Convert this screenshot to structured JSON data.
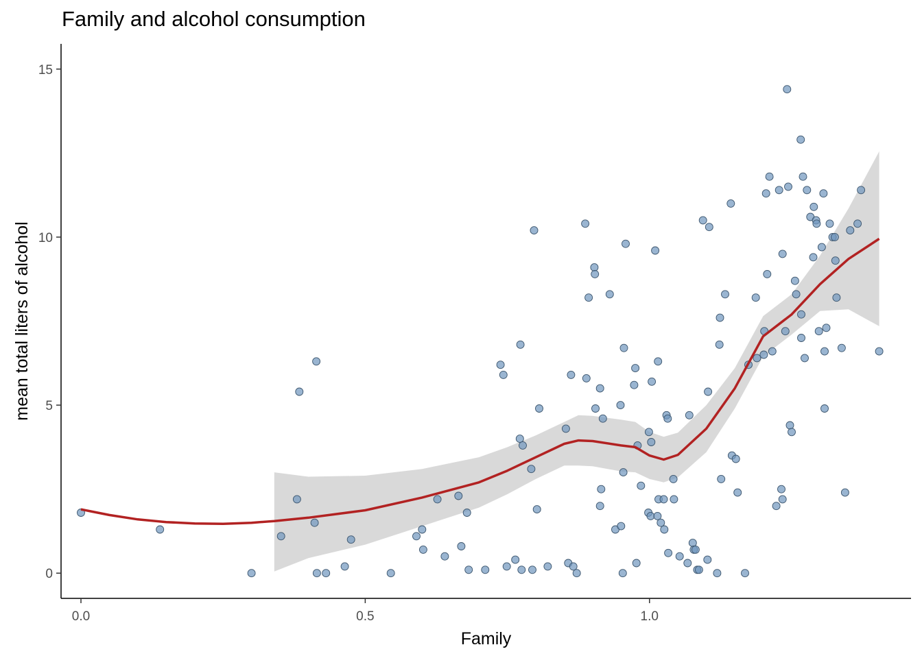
{
  "chart_data": {
    "type": "scatter",
    "title": "Family and alcohol consumption",
    "xlabel": "Family",
    "ylabel": "mean total liters of alcohol",
    "xlim": [
      -0.035,
      1.46
    ],
    "ylim": [
      -0.75,
      15.75
    ],
    "x_ticks": [
      0.0,
      0.5,
      1.0
    ],
    "x_tick_labels": [
      "0.0",
      "0.5",
      "1.0"
    ],
    "y_ticks": [
      0,
      5,
      10,
      15
    ],
    "y_tick_labels": [
      "0",
      "5",
      "10",
      "15"
    ],
    "grid": false,
    "point_color": "#6f96bd",
    "point_edge_color": "#3d566e",
    "smooth_color": "#b22222",
    "ribbon_color": "#d9d9d9",
    "points": [
      [
        0.0,
        1.8
      ],
      [
        0.139,
        1.3
      ],
      [
        0.3,
        0.0
      ],
      [
        0.352,
        1.1
      ],
      [
        0.38,
        2.2
      ],
      [
        0.384,
        5.4
      ],
      [
        0.411,
        1.5
      ],
      [
        0.414,
        6.3
      ],
      [
        0.415,
        0.0
      ],
      [
        0.431,
        0.0
      ],
      [
        0.464,
        0.2
      ],
      [
        0.475,
        1.0
      ],
      [
        0.545,
        0.0
      ],
      [
        0.59,
        1.1
      ],
      [
        0.6,
        1.3
      ],
      [
        0.602,
        0.7
      ],
      [
        0.627,
        2.2
      ],
      [
        0.64,
        0.5
      ],
      [
        0.664,
        2.3
      ],
      [
        0.669,
        0.8
      ],
      [
        0.679,
        1.8
      ],
      [
        0.682,
        0.1
      ],
      [
        0.711,
        0.1
      ],
      [
        0.738,
        6.2
      ],
      [
        0.743,
        5.9
      ],
      [
        0.749,
        0.2
      ],
      [
        0.764,
        0.4
      ],
      [
        0.772,
        4.0
      ],
      [
        0.773,
        6.8
      ],
      [
        0.775,
        0.1
      ],
      [
        0.777,
        3.8
      ],
      [
        0.792,
        3.1
      ],
      [
        0.794,
        0.1
      ],
      [
        0.797,
        10.2
      ],
      [
        0.802,
        1.9
      ],
      [
        0.806,
        4.9
      ],
      [
        0.821,
        0.2
      ],
      [
        0.853,
        4.3
      ],
      [
        0.857,
        0.3
      ],
      [
        0.862,
        5.9
      ],
      [
        0.866,
        0.2
      ],
      [
        0.872,
        0.0
      ],
      [
        0.887,
        10.4
      ],
      [
        0.889,
        5.8
      ],
      [
        0.893,
        8.2
      ],
      [
        0.903,
        9.1
      ],
      [
        0.904,
        8.9
      ],
      [
        0.905,
        4.9
      ],
      [
        0.913,
        2.0
      ],
      [
        0.913,
        5.5
      ],
      [
        0.915,
        2.5
      ],
      [
        0.918,
        4.6
      ],
      [
        0.93,
        8.3
      ],
      [
        0.94,
        1.3
      ],
      [
        0.949,
        5.0
      ],
      [
        0.95,
        1.4
      ],
      [
        0.953,
        0.0
      ],
      [
        0.954,
        3.0
      ],
      [
        0.955,
        6.7
      ],
      [
        0.958,
        9.8
      ],
      [
        0.973,
        5.6
      ],
      [
        0.975,
        6.1
      ],
      [
        0.977,
        0.3
      ],
      [
        0.979,
        3.8
      ],
      [
        0.985,
        2.6
      ],
      [
        0.998,
        1.8
      ],
      [
        0.999,
        4.2
      ],
      [
        1.002,
        1.7
      ],
      [
        1.003,
        3.9
      ],
      [
        1.004,
        5.7
      ],
      [
        1.01,
        9.6
      ],
      [
        1.014,
        1.7
      ],
      [
        1.015,
        6.3
      ],
      [
        1.016,
        2.2
      ],
      [
        1.02,
        1.5
      ],
      [
        1.025,
        2.2
      ],
      [
        1.026,
        1.3
      ],
      [
        1.03,
        4.7
      ],
      [
        1.032,
        4.6
      ],
      [
        1.033,
        0.6
      ],
      [
        1.042,
        2.8
      ],
      [
        1.043,
        2.2
      ],
      [
        1.053,
        0.5
      ],
      [
        1.067,
        0.3
      ],
      [
        1.07,
        4.7
      ],
      [
        1.076,
        0.9
      ],
      [
        1.078,
        0.7
      ],
      [
        1.081,
        0.7
      ],
      [
        1.084,
        0.1
      ],
      [
        1.087,
        0.1
      ],
      [
        1.094,
        10.5
      ],
      [
        1.102,
        0.4
      ],
      [
        1.103,
        5.4
      ],
      [
        1.105,
        10.3
      ],
      [
        1.119,
        0.0
      ],
      [
        1.123,
        6.8
      ],
      [
        1.124,
        7.6
      ],
      [
        1.126,
        2.8
      ],
      [
        1.133,
        8.3
      ],
      [
        1.143,
        11.0
      ],
      [
        1.145,
        3.5
      ],
      [
        1.152,
        3.4
      ],
      [
        1.155,
        2.4
      ],
      [
        1.168,
        0.0
      ],
      [
        1.174,
        6.2
      ],
      [
        1.187,
        8.2
      ],
      [
        1.189,
        6.4
      ],
      [
        1.201,
        6.5
      ],
      [
        1.202,
        7.2
      ],
      [
        1.205,
        11.3
      ],
      [
        1.207,
        8.9
      ],
      [
        1.211,
        11.8
      ],
      [
        1.216,
        6.6
      ],
      [
        1.223,
        2.0
      ],
      [
        1.228,
        11.4
      ],
      [
        1.232,
        2.5
      ],
      [
        1.234,
        9.5
      ],
      [
        1.234,
        2.2
      ],
      [
        1.239,
        7.2
      ],
      [
        1.242,
        14.4
      ],
      [
        1.244,
        11.5
      ],
      [
        1.247,
        4.4
      ],
      [
        1.25,
        4.2
      ],
      [
        1.256,
        8.7
      ],
      [
        1.258,
        8.3
      ],
      [
        1.266,
        12.9
      ],
      [
        1.267,
        7.7
      ],
      [
        1.267,
        7.0
      ],
      [
        1.27,
        11.8
      ],
      [
        1.273,
        6.4
      ],
      [
        1.277,
        11.4
      ],
      [
        1.283,
        10.6
      ],
      [
        1.288,
        9.4
      ],
      [
        1.289,
        10.9
      ],
      [
        1.293,
        10.5
      ],
      [
        1.294,
        10.4
      ],
      [
        1.298,
        7.2
      ],
      [
        1.303,
        9.7
      ],
      [
        1.306,
        11.3
      ],
      [
        1.308,
        6.6
      ],
      [
        1.308,
        4.9
      ],
      [
        1.311,
        7.3
      ],
      [
        1.317,
        10.4
      ],
      [
        1.322,
        10.0
      ],
      [
        1.326,
        10.0
      ],
      [
        1.327,
        9.3
      ],
      [
        1.329,
        8.2
      ],
      [
        1.338,
        6.7
      ],
      [
        1.344,
        2.4
      ],
      [
        1.353,
        10.2
      ],
      [
        1.366,
        10.4
      ],
      [
        1.372,
        11.4
      ],
      [
        1.404,
        6.6
      ]
    ],
    "smooth": {
      "x": [
        0.0,
        0.05,
        0.1,
        0.15,
        0.2,
        0.25,
        0.3,
        0.34,
        0.4,
        0.5,
        0.6,
        0.7,
        0.75,
        0.8,
        0.85,
        0.875,
        0.9,
        0.95,
        0.975,
        1.0,
        1.025,
        1.05,
        1.1,
        1.15,
        1.2,
        1.25,
        1.3,
        1.35,
        1.404
      ],
      "y": [
        1.9,
        1.73,
        1.6,
        1.52,
        1.48,
        1.47,
        1.5,
        1.55,
        1.65,
        1.87,
        2.25,
        2.7,
        3.05,
        3.45,
        3.85,
        3.95,
        3.93,
        3.8,
        3.75,
        3.5,
        3.38,
        3.52,
        4.3,
        5.5,
        7.05,
        7.7,
        8.6,
        9.35,
        9.95
      ],
      "lower": [
        null,
        null,
        null,
        null,
        null,
        null,
        null,
        0.05,
        0.45,
        0.85,
        1.4,
        1.95,
        2.35,
        2.8,
        3.2,
        3.2,
        3.18,
        3.03,
        3.0,
        2.8,
        2.7,
        2.85,
        3.6,
        4.9,
        6.45,
        7.1,
        7.8,
        7.85,
        7.35
      ],
      "upper": [
        null,
        null,
        null,
        null,
        null,
        null,
        null,
        3.0,
        2.87,
        2.9,
        3.1,
        3.45,
        3.75,
        4.1,
        4.5,
        4.7,
        4.68,
        4.57,
        4.5,
        4.2,
        4.06,
        4.18,
        5.0,
        6.1,
        7.65,
        8.3,
        9.45,
        10.85,
        12.55
      ]
    }
  }
}
